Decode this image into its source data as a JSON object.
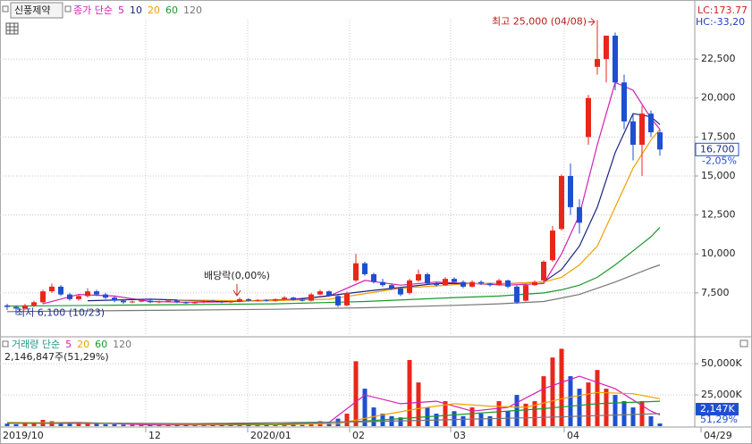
{
  "header": {
    "stock_name": "신풍제약"
  },
  "chart_data": [
    {
      "type": "candlestick",
      "legend_label": "종가 단순",
      "up_color": "#e8271a",
      "down_color": "#1f4fd1",
      "xlim": [
        -0.8,
        76.9
      ],
      "ylim": [
        4800,
        26000
      ],
      "yticks": [
        {
          "value": 7500,
          "label": "7,500"
        },
        {
          "value": 10000,
          "label": "10,000"
        },
        {
          "value": 12500,
          "label": "12,500"
        },
        {
          "value": 15000,
          "label": "15,000"
        },
        {
          "value": 17500,
          "label": "17,500"
        },
        {
          "value": 20000,
          "label": "20,000"
        },
        {
          "value": 22500,
          "label": "22,500"
        }
      ],
      "grid": true,
      "high_annotation": "최고 25,000 (04/08)",
      "low_annotation": "최저 6,100 (10/23)",
      "event_annotation": "배당락(0,00%)",
      "lc_label": "LC:173.77",
      "hc_label": "HC:-33,20",
      "last_price_label": "16,700",
      "last_change_label": "-2,05%",
      "candles": [
        [
          6700,
          6800,
          6400,
          6600
        ],
        [
          6600,
          6700,
          6100,
          6500
        ],
        [
          6500,
          6800,
          6400,
          6700
        ],
        [
          6700,
          7000,
          6600,
          6900
        ],
        [
          6900,
          7700,
          6800,
          7600
        ],
        [
          7600,
          8100,
          7500,
          7900
        ],
        [
          7900,
          8000,
          7300,
          7400
        ],
        [
          7400,
          7500,
          7000,
          7100
        ],
        [
          7100,
          7400,
          7000,
          7300
        ],
        [
          7300,
          7800,
          7200,
          7600
        ],
        [
          7600,
          7700,
          7300,
          7400
        ],
        [
          7400,
          7500,
          7100,
          7200
        ],
        [
          7200,
          7300,
          6900,
          7000
        ],
        [
          7000,
          7100,
          6800,
          6900
        ],
        [
          6900,
          7000,
          6850,
          6950
        ],
        [
          6950,
          7100,
          6900,
          7000
        ],
        [
          7000,
          7050,
          6850,
          6900
        ],
        [
          6900,
          7000,
          6850,
          6950
        ],
        [
          6950,
          7100,
          6900,
          7000
        ],
        [
          7000,
          7050,
          6850,
          6900
        ],
        [
          6900,
          6950,
          6800,
          6850
        ],
        [
          6850,
          6950,
          6800,
          6900
        ],
        [
          6900,
          7050,
          6850,
          7000
        ],
        [
          7000,
          7050,
          6900,
          6950
        ],
        [
          6950,
          7000,
          6850,
          6900
        ],
        [
          6900,
          7000,
          6850,
          6950
        ],
        [
          6950,
          7200,
          6900,
          7100
        ],
        [
          7100,
          7150,
          6950,
          7000
        ],
        [
          7000,
          7100,
          6950,
          7050
        ],
        [
          7050,
          7100,
          6950,
          7000
        ],
        [
          7000,
          7150,
          6950,
          7100
        ],
        [
          7100,
          7300,
          7050,
          7200
        ],
        [
          7200,
          7250,
          7000,
          7050
        ],
        [
          7050,
          7100,
          6950,
          7000
        ],
        [
          7000,
          7500,
          6950,
          7400
        ],
        [
          7400,
          7700,
          7350,
          7600
        ],
        [
          7600,
          7650,
          7250,
          7300
        ],
        [
          7300,
          7350,
          6600,
          6700
        ],
        [
          6700,
          7600,
          6650,
          7500
        ],
        [
          8300,
          10000,
          8200,
          9400
        ],
        [
          9400,
          9500,
          8600,
          8700
        ],
        [
          8700,
          8800,
          8100,
          8200
        ],
        [
          8200,
          8400,
          7900,
          8000
        ],
        [
          8000,
          8100,
          7700,
          7800
        ],
        [
          7800,
          7900,
          7300,
          7400
        ],
        [
          7500,
          8400,
          7400,
          8300
        ],
        [
          8300,
          9000,
          8200,
          8700
        ],
        [
          8700,
          8800,
          8000,
          8100
        ],
        [
          8100,
          8200,
          7900,
          8000
        ],
        [
          8000,
          8500,
          7950,
          8400
        ],
        [
          8400,
          8500,
          8100,
          8200
        ],
        [
          8200,
          8300,
          7800,
          7900
        ],
        [
          7900,
          8300,
          7850,
          8200
        ],
        [
          8200,
          8300,
          8000,
          8100
        ],
        [
          8100,
          8150,
          7900,
          8000
        ],
        [
          8000,
          8400,
          7950,
          8300
        ],
        [
          8300,
          8350,
          7800,
          7900
        ],
        [
          7900,
          8000,
          6800,
          6900
        ],
        [
          7000,
          8100,
          6950,
          8000
        ],
        [
          8000,
          8300,
          7950,
          8200
        ],
        [
          8300,
          9600,
          8200,
          9500
        ],
        [
          9600,
          11800,
          9500,
          11500
        ],
        [
          11600,
          15100,
          11500,
          15000
        ],
        [
          15000,
          15800,
          12500,
          13000
        ],
        [
          13000,
          13500,
          11300,
          12000
        ],
        [
          17500,
          20200,
          17000,
          20000
        ],
        [
          22000,
          25000,
          21500,
          22500
        ],
        [
          22500,
          24000,
          21000,
          24000
        ],
        [
          24000,
          24200,
          20500,
          21000
        ],
        [
          21000,
          21500,
          18000,
          18500
        ],
        [
          18500,
          19000,
          16000,
          17000
        ],
        [
          17000,
          19500,
          15000,
          19000
        ],
        [
          19000,
          19200,
          17500,
          17800
        ],
        [
          17800,
          18000,
          16300,
          16700
        ]
      ],
      "series": [
        {
          "name": "5",
          "color": "#d21fb4",
          "x": [
            4,
            8,
            12,
            16,
            20,
            24,
            28,
            32,
            36,
            40,
            44,
            48,
            52,
            56,
            60,
            62,
            64,
            66,
            68,
            70,
            72,
            73
          ],
          "values": [
            6800,
            7400,
            7300,
            6950,
            6900,
            6920,
            7000,
            7100,
            7300,
            8300,
            8000,
            8200,
            8100,
            8000,
            8100,
            10000,
            12500,
            17000,
            21000,
            20500,
            18700,
            18000
          ]
        },
        {
          "name": "10",
          "color": "#1a237e",
          "x": [
            9,
            16,
            24,
            32,
            40,
            48,
            56,
            60,
            62,
            64,
            66,
            68,
            70,
            72,
            73
          ],
          "values": [
            7000,
            7100,
            6950,
            7050,
            7600,
            8100,
            8100,
            8200,
            9000,
            10500,
            13000,
            16500,
            19000,
            18800,
            18300
          ]
        },
        {
          "name": "20",
          "color": "#f0a000",
          "x": [
            19,
            28,
            36,
            44,
            52,
            56,
            60,
            62,
            64,
            66,
            68,
            70,
            72,
            73
          ],
          "values": [
            7050,
            6980,
            7100,
            7800,
            8100,
            8100,
            8200,
            8500,
            9300,
            10500,
            13000,
            15500,
            17300,
            18000
          ]
        },
        {
          "name": "60",
          "color": "#1a9a2a",
          "x": [
            0,
            10,
            20,
            30,
            40,
            50,
            55,
            60,
            62,
            64,
            66,
            68,
            70,
            72,
            73
          ],
          "values": [
            6650,
            6700,
            6750,
            6800,
            6950,
            7200,
            7300,
            7500,
            7700,
            8000,
            8500,
            9300,
            10200,
            11100,
            11700
          ]
        },
        {
          "name": "120",
          "color": "#777777",
          "x": [
            0,
            10,
            20,
            30,
            40,
            50,
            55,
            60,
            64,
            68,
            72,
            73
          ],
          "values": [
            6300,
            6350,
            6400,
            6450,
            6550,
            6700,
            6800,
            6950,
            7400,
            8200,
            9100,
            9300
          ]
        }
      ]
    },
    {
      "type": "bar",
      "legend_label": "거래량 단순",
      "volume_text": "2,146,847주(51,29%)",
      "last_volume_label": "2,147K",
      "last_ratio_label": "51,29%",
      "xlim": [
        -0.8,
        76.9
      ],
      "ylim": [
        0,
        68000000
      ],
      "xticks": [
        {
          "value": -0.8,
          "label": "2019/10"
        },
        {
          "value": 15.5,
          "label": "12"
        },
        {
          "value": 26.9,
          "label": "2020/01"
        },
        {
          "value": 38.3,
          "label": "02"
        },
        {
          "value": 49.6,
          "label": "03"
        },
        {
          "value": 62.3,
          "label": "04"
        },
        {
          "value": 77.6,
          "label": "04/29"
        }
      ],
      "yticks": [
        {
          "value": 25000000,
          "label": "25,000K"
        },
        {
          "value": 50000000,
          "label": "50,000K"
        }
      ],
      "grid": true,
      "values": [
        2000000,
        1500000,
        3000000,
        2500000,
        5000000,
        4000000,
        3000000,
        2500000,
        2000000,
        3000000,
        2000000,
        1500000,
        1500000,
        1200000,
        1000000,
        1000000,
        900000,
        800000,
        1000000,
        900000,
        800000,
        800000,
        1000000,
        900000,
        800000,
        800000,
        1500000,
        1000000,
        1000000,
        900000,
        1200000,
        1500000,
        1000000,
        900000,
        3000000,
        4000000,
        2500000,
        6000000,
        10000000,
        52000000,
        30000000,
        15000000,
        10000000,
        8000000,
        7000000,
        53000000,
        35000000,
        15000000,
        10000000,
        20000000,
        12000000,
        8000000,
        15000000,
        10000000,
        8000000,
        20000000,
        12000000,
        25000000,
        18000000,
        20000000,
        40000000,
        55000000,
        62000000,
        40000000,
        30000000,
        35000000,
        45000000,
        30000000,
        25000000,
        20000000,
        15000000,
        20000000,
        8000000,
        2146847
      ],
      "series": [
        {
          "name": "5",
          "color": "#d21fb4",
          "x": [
            0,
            8,
            16,
            24,
            32,
            36,
            40,
            44,
            48,
            52,
            56,
            60,
            64,
            68,
            72,
            73
          ],
          "values": [
            2500000,
            3000000,
            1000000,
            900000,
            1200000,
            3000000,
            25000000,
            18000000,
            20000000,
            12000000,
            15000000,
            30000000,
            40000000,
            30000000,
            12000000,
            9000000
          ]
        },
        {
          "name": "20",
          "color": "#f0a000",
          "x": [
            0,
            10,
            20,
            30,
            37,
            42,
            46,
            50,
            54,
            58,
            62,
            66,
            70,
            73
          ],
          "values": [
            3000000,
            2500000,
            1500000,
            1200000,
            2000000,
            9000000,
            14000000,
            18000000,
            16000000,
            15000000,
            22000000,
            27000000,
            26000000,
            22000000
          ]
        },
        {
          "name": "60",
          "color": "#1a9a2a",
          "x": [
            0,
            15,
            30,
            40,
            50,
            60,
            66,
            73
          ],
          "values": [
            2500000,
            2200000,
            1600000,
            4000000,
            9000000,
            14000000,
            18000000,
            20000000
          ]
        },
        {
          "name": "120",
          "color": "#777777",
          "x": [
            0,
            20,
            40,
            60,
            73
          ],
          "values": [
            2200000,
            2000000,
            3500000,
            7000000,
            10000000
          ]
        }
      ]
    }
  ]
}
